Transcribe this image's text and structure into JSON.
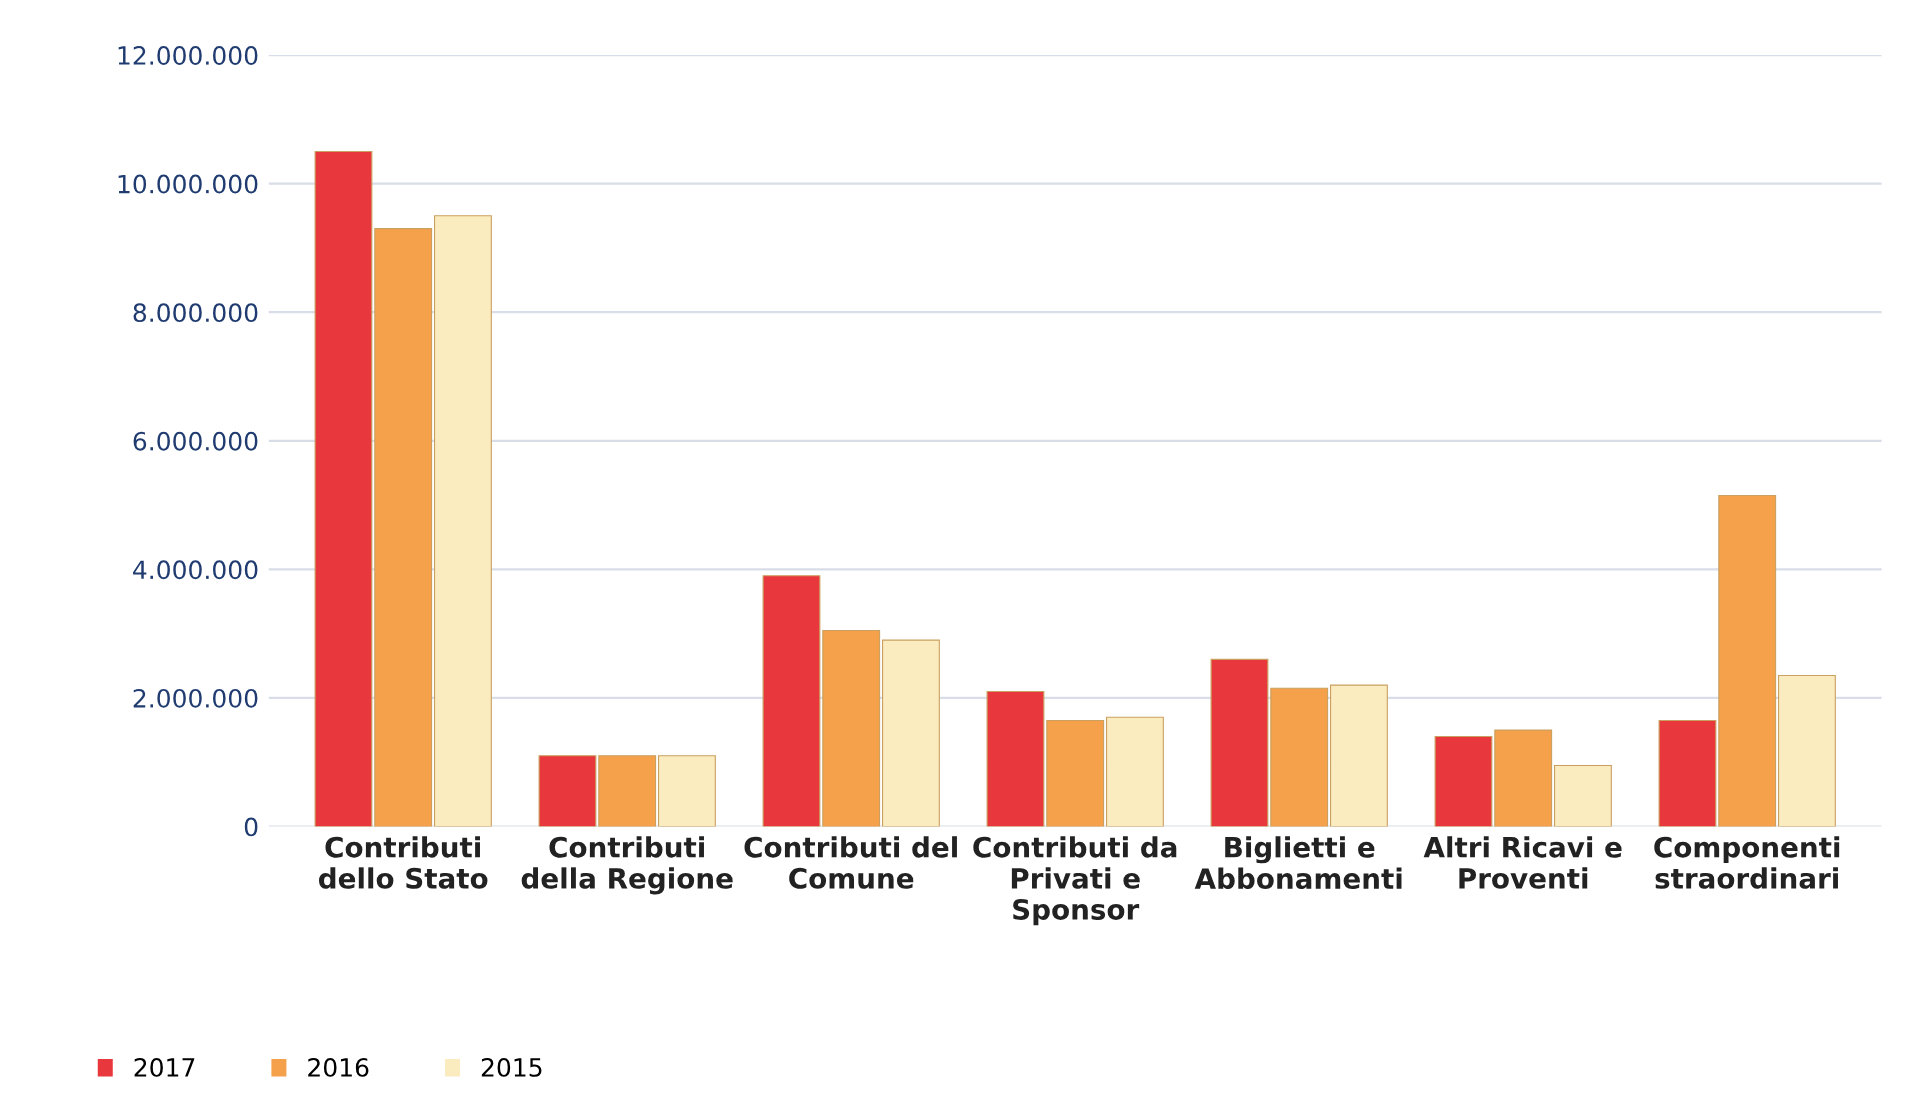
{
  "chart_data": {
    "type": "bar",
    "categories": [
      "Contributi\ndello Stato",
      "Contributi\ndella Regione",
      "Contributi del\nComune",
      "Contributi da\nPrivati e\nSponsor",
      "Biglietti e\nAbbonamenti",
      "Altri Ricavi e\nProventi",
      "Componenti\nstraordinari"
    ],
    "series": [
      {
        "name": "2017",
        "color": "#e8383d",
        "values": [
          10500000,
          1100000,
          3900000,
          2100000,
          2600000,
          1400000,
          1650000
        ]
      },
      {
        "name": "2016",
        "color": "#f5a04a",
        "values": [
          9300000,
          1100000,
          3050000,
          1650000,
          2150000,
          1500000,
          5150000
        ]
      },
      {
        "name": "2015",
        "color": "#fbecc0",
        "values": [
          9500000,
          1100000,
          2900000,
          1700000,
          2200000,
          950000,
          2350000
        ]
      }
    ],
    "ylim": [
      0,
      12000000
    ],
    "yticks": [
      0,
      {
        "value": 2000000,
        "label": "2.000.000"
      },
      {
        "value": 4000000,
        "label": "4.000.000"
      },
      {
        "value": 6000000,
        "label": "6.000.000"
      },
      {
        "value": 8000000,
        "label": "8.000.000"
      },
      {
        "value": 10000000,
        "label": "10.000.000"
      },
      {
        "value": 12000000,
        "label": "12.000.000"
      }
    ],
    "grid": "y",
    "legend": "bottom left"
  }
}
